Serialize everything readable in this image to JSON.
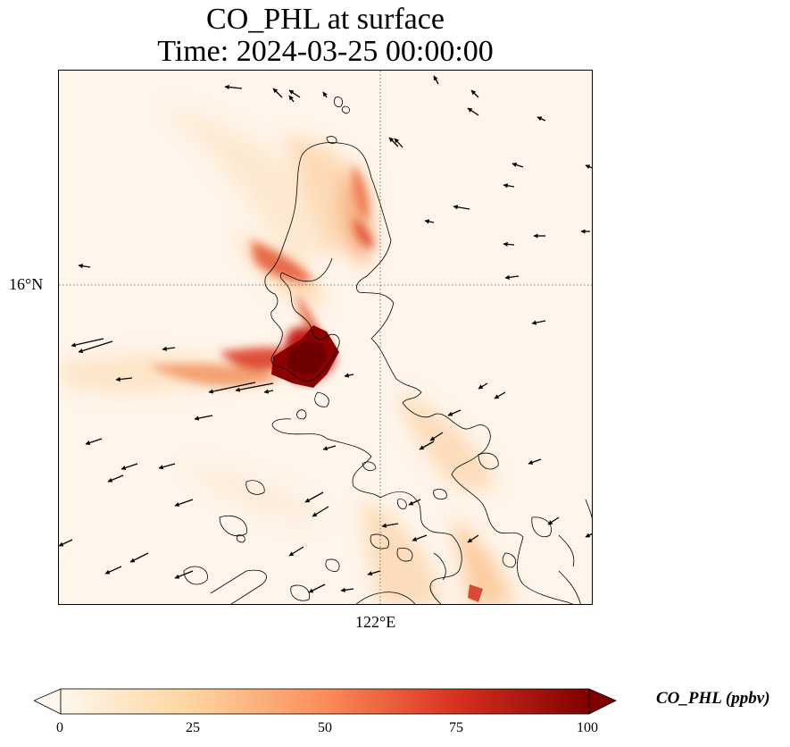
{
  "figure": {
    "title_line1": "CO_PHL at surface",
    "title_line2": "Time: 2024-03-25 00:00:00"
  },
  "map": {
    "lat_gridline_label": "16°N",
    "lon_gridline_label": "122°E",
    "gridline_style": "dotted",
    "field_name": "CO_PHL",
    "wind_vectors": "shown"
  },
  "colorbar": {
    "label": "CO_PHL (ppbv)",
    "colormap": "OrRd",
    "range": [
      0,
      100
    ],
    "extend": "both",
    "ticks": [
      "0",
      "25",
      "50",
      "75",
      "100"
    ],
    "colors": [
      "#fff7ec",
      "#fdd49e",
      "#fc8d59",
      "#d7301f",
      "#7f0000"
    ]
  }
}
